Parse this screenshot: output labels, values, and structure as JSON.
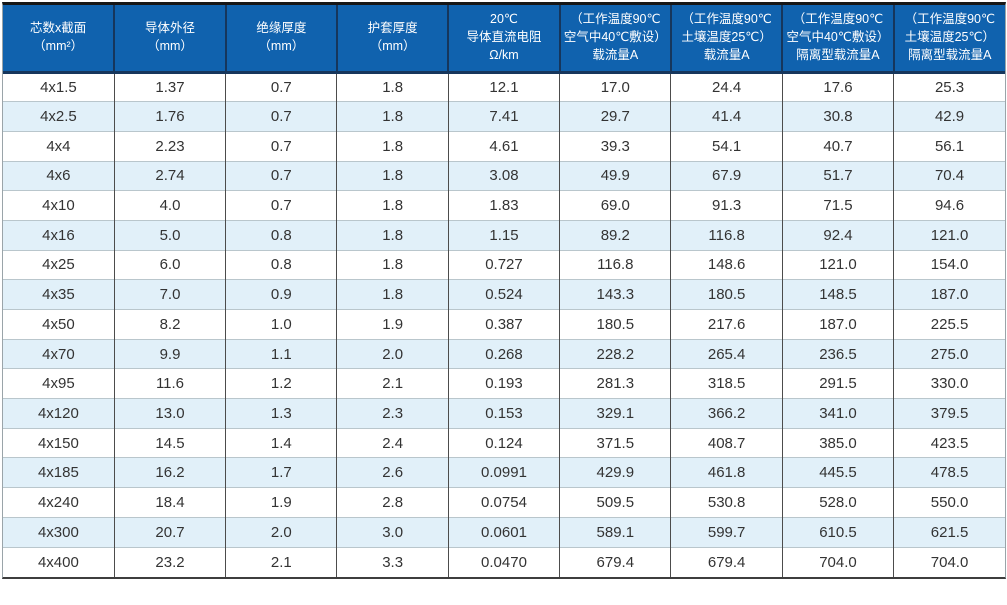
{
  "colors": {
    "header_background": "#1062ae",
    "header_text": "#ffffff",
    "header_separator": "#16365c",
    "row_alternate_background": "#e1f0f9",
    "row_background": "#ffffff",
    "body_text": "#333333",
    "body_column_line": "#4c4c4c",
    "row_divider_line": "#b9c6cc",
    "top_border": "#161616"
  },
  "chart_data": {
    "type": "table",
    "columns": [
      {
        "lines": [
          "芯数x截面",
          "（mm²）"
        ]
      },
      {
        "lines": [
          "导体外径",
          "（mm）"
        ]
      },
      {
        "lines": [
          "绝缘厚度",
          "（mm）"
        ]
      },
      {
        "lines": [
          "护套厚度",
          "（mm）"
        ]
      },
      {
        "lines": [
          "20℃",
          "导体直流电阻",
          "Ω/km"
        ]
      },
      {
        "lines": [
          "（工作温度90℃",
          "空气中40℃敷设）",
          "载流量A"
        ]
      },
      {
        "lines": [
          "（工作温度90℃",
          "土壤温度25℃）",
          "载流量A"
        ]
      },
      {
        "lines": [
          "（工作温度90℃",
          "空气中40℃敷设）",
          "隔离型载流量A"
        ]
      },
      {
        "lines": [
          "（工作温度90℃",
          "土壤温度25℃）",
          "隔离型载流量A"
        ]
      }
    ],
    "rows": [
      [
        "4x1.5",
        "1.37",
        "0.7",
        "1.8",
        "12.1",
        "17.0",
        "24.4",
        "17.6",
        "25.3"
      ],
      [
        "4x2.5",
        "1.76",
        "0.7",
        "1.8",
        "7.41",
        "29.7",
        "41.4",
        "30.8",
        "42.9"
      ],
      [
        "4x4",
        "2.23",
        "0.7",
        "1.8",
        "4.61",
        "39.3",
        "54.1",
        "40.7",
        "56.1"
      ],
      [
        "4x6",
        "2.74",
        "0.7",
        "1.8",
        "3.08",
        "49.9",
        "67.9",
        "51.7",
        "70.4"
      ],
      [
        "4x10",
        "4.0",
        "0.7",
        "1.8",
        "1.83",
        "69.0",
        "91.3",
        "71.5",
        "94.6"
      ],
      [
        "4x16",
        "5.0",
        "0.8",
        "1.8",
        "1.15",
        "89.2",
        "116.8",
        "92.4",
        "121.0"
      ],
      [
        "4x25",
        "6.0",
        "0.8",
        "1.8",
        "0.727",
        "116.8",
        "148.6",
        "121.0",
        "154.0"
      ],
      [
        "4x35",
        "7.0",
        "0.9",
        "1.8",
        "0.524",
        "143.3",
        "180.5",
        "148.5",
        "187.0"
      ],
      [
        "4x50",
        "8.2",
        "1.0",
        "1.9",
        "0.387",
        "180.5",
        "217.6",
        "187.0",
        "225.5"
      ],
      [
        "4x70",
        "9.9",
        "1.1",
        "2.0",
        "0.268",
        "228.2",
        "265.4",
        "236.5",
        "275.0"
      ],
      [
        "4x95",
        "11.6",
        "1.2",
        "2.1",
        "0.193",
        "281.3",
        "318.5",
        "291.5",
        "330.0"
      ],
      [
        "4x120",
        "13.0",
        "1.3",
        "2.3",
        "0.153",
        "329.1",
        "366.2",
        "341.0",
        "379.5"
      ],
      [
        "4x150",
        "14.5",
        "1.4",
        "2.4",
        "0.124",
        "371.5",
        "408.7",
        "385.0",
        "423.5"
      ],
      [
        "4x185",
        "16.2",
        "1.7",
        "2.6",
        "0.0991",
        "429.9",
        "461.8",
        "445.5",
        "478.5"
      ],
      [
        "4x240",
        "18.4",
        "1.9",
        "2.8",
        "0.0754",
        "509.5",
        "530.8",
        "528.0",
        "550.0"
      ],
      [
        "4x300",
        "20.7",
        "2.0",
        "3.0",
        "0.0601",
        "589.1",
        "599.7",
        "610.5",
        "621.5"
      ],
      [
        "4x400",
        "23.2",
        "2.1",
        "3.3",
        "0.0470",
        "679.4",
        "679.4",
        "704.0",
        "704.0"
      ]
    ],
    "layout": {
      "row_striping": "odd rows white, even rows light blue",
      "column_count": 9,
      "row_count": 17
    }
  }
}
